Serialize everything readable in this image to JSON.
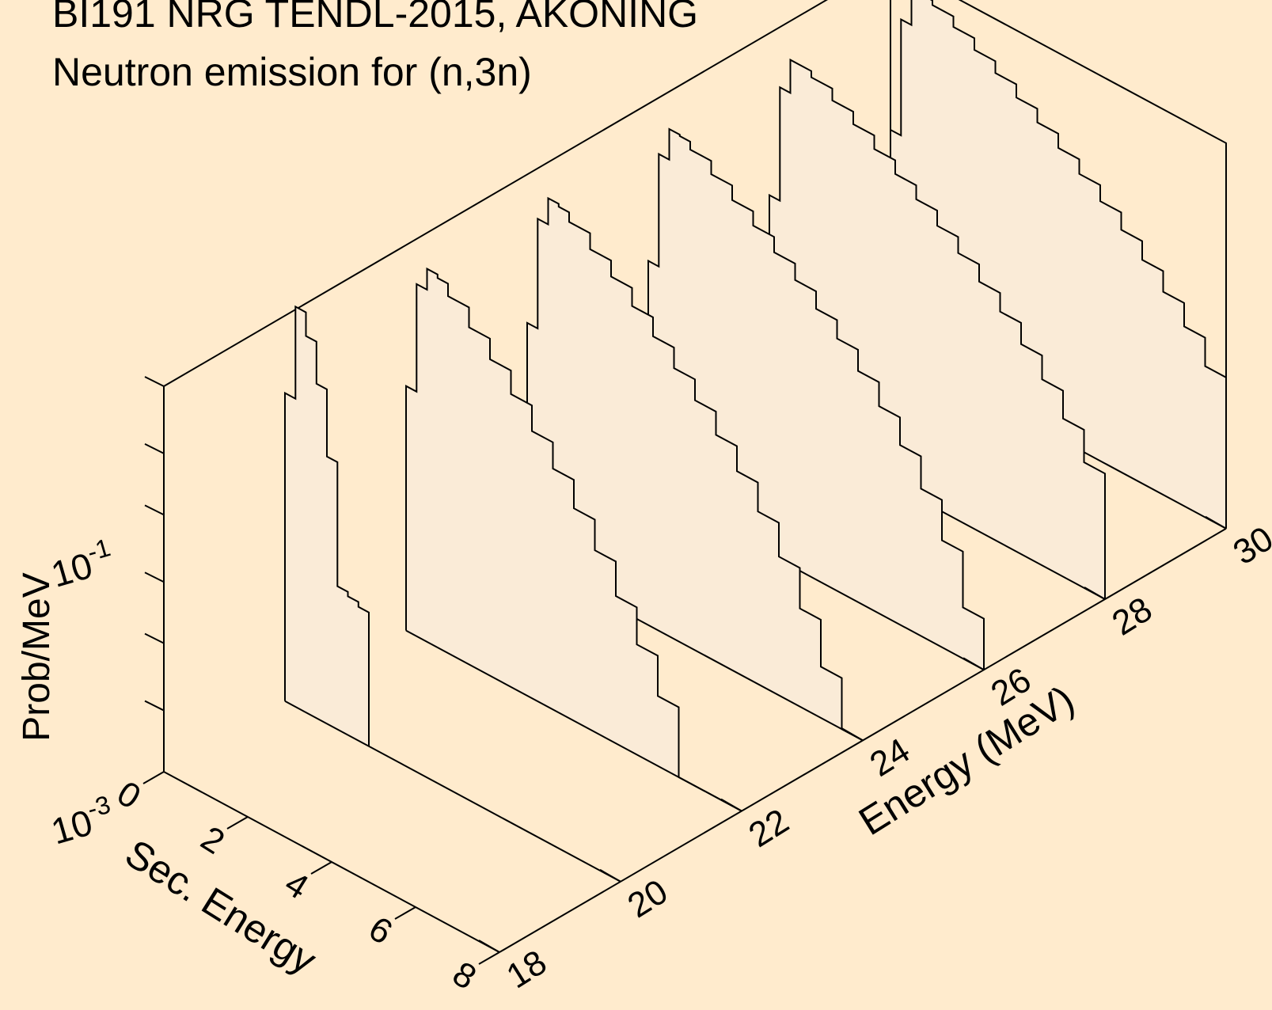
{
  "chart_data": {
    "type": "3d-line",
    "title": "BI191 NRG TENDL-2015, AKONING",
    "subtitle": "Neutron emission for (n,3n)",
    "xlabel": "Sec. Energy",
    "ylabel": "Energy (MeV)",
    "zlabel": "Prob/MeV",
    "xlim": [
      0,
      8
    ],
    "ylim": [
      18,
      30
    ],
    "zlim_log10": [
      -3,
      0
    ],
    "z_scale": "log",
    "x_ticks": [
      "0",
      "2",
      "4",
      "6",
      "8"
    ],
    "y_ticks": [
      "18",
      "20",
      "22",
      "24",
      "26",
      "28",
      "30"
    ],
    "z_tick_labels": [
      {
        "value": 0.001,
        "base": "10",
        "exponent": "-3"
      },
      {
        "value": 0.1,
        "base": "10",
        "exponent": "-1"
      }
    ],
    "fill_color": "#FAEBD7",
    "background": "#FFEBCD",
    "series": [
      {
        "incident_energy": 20,
        "x": [
          0.0,
          0.25,
          0.5,
          0.75,
          1.0,
          1.25,
          1.5,
          1.75,
          2.0
        ],
        "values": [
          0.25,
          1.3,
          0.85,
          0.4,
          0.12,
          0.013,
          0.012,
          0.011,
          0.009
        ]
      },
      {
        "incident_energy": 22,
        "x": [
          0.0,
          0.25,
          0.5,
          0.75,
          1.0,
          1.5,
          2.0,
          2.5,
          3.0,
          3.5,
          4.0,
          4.5,
          5.0,
          5.5,
          6.0,
          6.5,
          7.0,
          7.5,
          8.0
        ],
        "values": [
          0.08,
          0.55,
          0.8,
          0.75,
          0.6,
          0.42,
          0.29,
          0.19,
          0.12,
          0.075,
          0.045,
          0.026,
          0.014,
          0.0072,
          0.0035,
          0.001,
          0.001,
          0.001,
          0.001
        ]
      },
      {
        "incident_energy": 24,
        "x": [
          0.0,
          0.25,
          0.5,
          0.75,
          1.0,
          1.5,
          2.0,
          2.5,
          3.0,
          3.5,
          4.0,
          4.5,
          5.0,
          5.5,
          6.0,
          6.5,
          7.0,
          7.5,
          8.0
        ],
        "values": [
          0.07,
          0.5,
          0.8,
          0.76,
          0.64,
          0.48,
          0.36,
          0.26,
          0.185,
          0.128,
          0.088,
          0.058,
          0.037,
          0.022,
          0.012,
          0.0058,
          0.0025,
          0.001,
          0.001
        ]
      },
      {
        "incident_energy": 26,
        "x": [
          0.0,
          0.25,
          0.5,
          0.75,
          1.0,
          1.5,
          2.0,
          2.5,
          3.0,
          3.5,
          4.0,
          4.5,
          5.0,
          5.5,
          6.0,
          6.5,
          7.0,
          7.5,
          8.0
        ],
        "values": [
          0.06,
          0.45,
          0.78,
          0.76,
          0.66,
          0.52,
          0.4,
          0.31,
          0.235,
          0.175,
          0.128,
          0.092,
          0.063,
          0.041,
          0.025,
          0.014,
          0.0068,
          0.0025,
          0.001
        ]
      },
      {
        "incident_energy": 28,
        "x": [
          0.0,
          0.25,
          0.5,
          0.75,
          1.0,
          1.5,
          2.0,
          2.5,
          3.0,
          3.5,
          4.0,
          4.5,
          5.0,
          5.5,
          6.0,
          6.5,
          7.0,
          7.5,
          8.0
        ],
        "values": [
          0.055,
          0.42,
          0.76,
          0.76,
          0.68,
          0.55,
          0.44,
          0.345,
          0.27,
          0.21,
          0.16,
          0.12,
          0.088,
          0.063,
          0.043,
          0.028,
          0.017,
          0.0095,
          0.0045
        ]
      },
      {
        "incident_energy": 30,
        "x": [
          0.0,
          0.25,
          0.5,
          0.75,
          1.0,
          1.5,
          2.0,
          2.5,
          3.0,
          3.5,
          4.0,
          4.5,
          5.0,
          5.5,
          6.0,
          6.5,
          7.0,
          7.5,
          8.0
        ],
        "values": [
          0.05,
          0.4,
          0.75,
          0.76,
          0.7,
          0.58,
          0.47,
          0.38,
          0.3,
          0.235,
          0.182,
          0.14,
          0.105,
          0.077,
          0.055,
          0.038,
          0.025,
          0.015,
          0.008
        ]
      }
    ]
  }
}
